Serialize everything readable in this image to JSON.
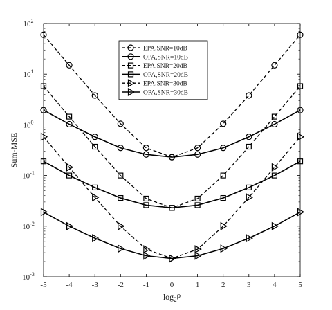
{
  "chart_data": {
    "type": "line",
    "title": "",
    "xlabel": "log",
    "xlabel_sub": "2",
    "xlabel_var": "ρ",
    "ylabel": "Sum-MSE",
    "x": [
      -5,
      -4,
      -3,
      -2,
      -1,
      0,
      1,
      2,
      3,
      4,
      5
    ],
    "xlim": [
      -5,
      5
    ],
    "ylim": [
      0.001,
      100
    ],
    "yscale": "log",
    "x_ticks": [
      "-5",
      "-4",
      "-3",
      "-2",
      "-1",
      "0",
      "1",
      "2",
      "3",
      "4",
      "5"
    ],
    "y_ticks": [
      {
        "base": "10",
        "exp": "-3"
      },
      {
        "base": "10",
        "exp": "-2"
      },
      {
        "base": "10",
        "exp": "-1"
      },
      {
        "base": "10",
        "exp": "0"
      },
      {
        "base": "10",
        "exp": "1"
      },
      {
        "base": "10",
        "exp": "2"
      }
    ],
    "grid": false,
    "legend_position": "top-center",
    "series": [
      {
        "name": "EPA,SNR=10dB",
        "line": "dashed",
        "marker": "circle",
        "values": [
          60,
          15,
          3.8,
          1.05,
          0.35,
          0.23,
          0.35,
          1.05,
          3.8,
          15,
          60
        ]
      },
      {
        "name": "OPA,SNR=10dB",
        "line": "solid",
        "marker": "circle",
        "values": [
          1.95,
          1.03,
          0.58,
          0.35,
          0.26,
          0.23,
          0.26,
          0.35,
          0.58,
          1.03,
          1.95
        ]
      },
      {
        "name": "EPA,SNR=20dB",
        "line": "dashed",
        "marker": "square",
        "values": [
          5.8,
          1.45,
          0.37,
          0.1,
          0.035,
          0.023,
          0.035,
          0.1,
          0.37,
          1.45,
          5.8
        ]
      },
      {
        "name": "OPA,SNR=20dB",
        "line": "solid",
        "marker": "square",
        "values": [
          0.19,
          0.1,
          0.058,
          0.036,
          0.026,
          0.023,
          0.026,
          0.036,
          0.058,
          0.1,
          0.19
        ]
      },
      {
        "name": "EPA,SNR=30dB",
        "line": "dashed",
        "marker": "triangle-right",
        "values": [
          0.58,
          0.145,
          0.037,
          0.01,
          0.0035,
          0.0023,
          0.0035,
          0.01,
          0.037,
          0.145,
          0.58
        ]
      },
      {
        "name": "OPA,SNR=30dB",
        "line": "solid",
        "marker": "triangle-right",
        "values": [
          0.019,
          0.01,
          0.0058,
          0.0036,
          0.0026,
          0.0023,
          0.0026,
          0.0036,
          0.0058,
          0.01,
          0.019
        ]
      }
    ],
    "colors": {
      "line": "#000000",
      "background": "#ffffff"
    }
  }
}
